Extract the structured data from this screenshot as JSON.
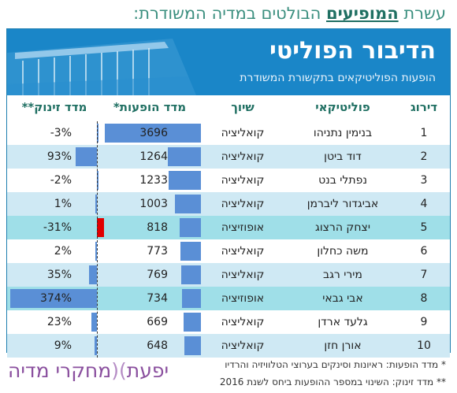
{
  "heading": {
    "prefix": "עשרת",
    "highlight": "המופיעים",
    "suffix": "הבולטים במדיה המשודרת:"
  },
  "banner": {
    "title": "הדיבור הפוליטי",
    "subtitle": "הופעות הפוליטיקאים בתקשורת המשודרת"
  },
  "columns": {
    "rank": "דירוג",
    "politician": "פוליטיקאי",
    "affiliation": "שיוך",
    "appearances": "מדד הופעות*",
    "buzz": "מדד זינוק**"
  },
  "colors": {
    "accent": "#1a86c8",
    "bar": "#5a8fd6",
    "negative_highlight": "#e00000",
    "row_alt": "#cfe9f4",
    "row_highlight": "#9fdfe8",
    "title_green": "#3b8f7f"
  },
  "chart_data": {
    "type": "table",
    "appearances_max": 3696,
    "buzz_range": [
      -31,
      374
    ],
    "rows": [
      {
        "rank": "1",
        "name": "בנימין נתניהו",
        "affiliation": "קואליציה",
        "appearances": 3696,
        "buzz": -3,
        "buzz_label": "-3%",
        "style": "normal"
      },
      {
        "rank": "2",
        "name": "דוד ביטן",
        "affiliation": "קואליציה",
        "appearances": 1264,
        "buzz": 93,
        "buzz_label": "93%",
        "style": "alt"
      },
      {
        "rank": "3",
        "name": "נפתלי בנט",
        "affiliation": "קואליציה",
        "appearances": 1233,
        "buzz": -2,
        "buzz_label": "-2%",
        "style": "normal"
      },
      {
        "rank": "4",
        "name": "אביגדור ליברמן",
        "affiliation": "קואליציה",
        "appearances": 1003,
        "buzz": 1,
        "buzz_label": "1%",
        "style": "alt"
      },
      {
        "rank": "5",
        "name": "יצחק הרצוג",
        "affiliation": "אופוזיציה",
        "appearances": 818,
        "buzz": -31,
        "buzz_label": "-31%",
        "style": "hl"
      },
      {
        "rank": "6",
        "name": "משה כחלון",
        "affiliation": "קואליציה",
        "appearances": 773,
        "buzz": 2,
        "buzz_label": "2%",
        "style": "normal"
      },
      {
        "rank": "7",
        "name": "מירי רגב",
        "affiliation": "קואליציה",
        "appearances": 769,
        "buzz": 35,
        "buzz_label": "35%",
        "style": "alt"
      },
      {
        "rank": "8",
        "name": "אבי גבאי",
        "affiliation": "אופוזיציה",
        "appearances": 734,
        "buzz": 374,
        "buzz_label": "374%",
        "style": "hl"
      },
      {
        "rank": "9",
        "name": "גלעד ארדן",
        "affiliation": "קואליציה",
        "appearances": 669,
        "buzz": 23,
        "buzz_label": "23%",
        "style": "normal"
      },
      {
        "rank": "10",
        "name": "אורן חזן",
        "affiliation": "קואליציה",
        "appearances": 648,
        "buzz": 9,
        "buzz_label": "9%",
        "style": "alt"
      }
    ]
  },
  "logo": {
    "name_a": "יפעת",
    "separator": ")(",
    "name_b": "מחקרי מדיה"
  },
  "notes": {
    "note1": "* מדד הופעות: ראיונות וסינקים בערוצי הטלוויזיה והרדיו",
    "note2": "** מדד זינוק: השינוי במספר ההופעות ביחס לשנת 2016"
  }
}
